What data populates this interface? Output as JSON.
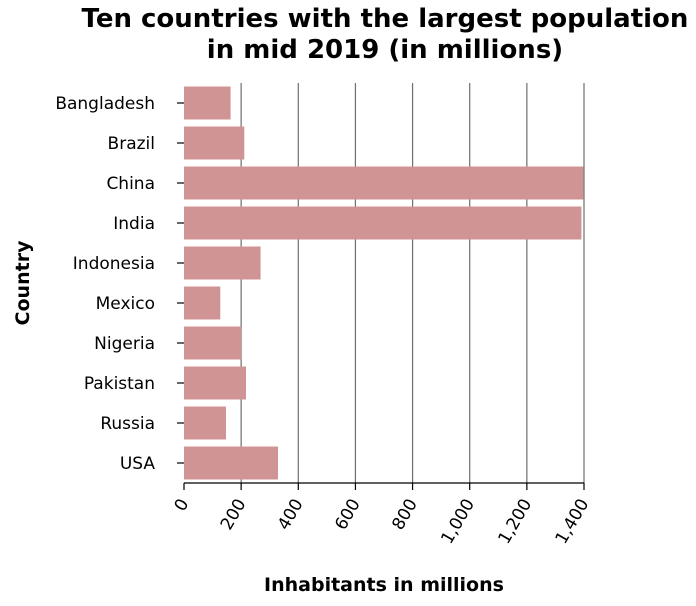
{
  "chart_data": {
    "type": "bar",
    "orientation": "horizontal",
    "title_lines": [
      "Ten countries with the largest population",
      "in mid 2019 (in millions)"
    ],
    "xlabel": "Inhabitants in millions",
    "ylabel": "Country",
    "categories": [
      "Bangladesh",
      "Brazil",
      "China",
      "India",
      "Indonesia",
      "Mexico",
      "Nigeria",
      "Pakistan",
      "Russia",
      "USA"
    ],
    "values": [
      163,
      211,
      1398,
      1391,
      268,
      127,
      201,
      217,
      147,
      329
    ],
    "xlim": [
      0,
      1400
    ],
    "xticks": [
      0,
      200,
      400,
      600,
      800,
      1000,
      1200,
      1400
    ],
    "xtick_labels": [
      "0",
      "200",
      "400",
      "600",
      "800",
      "1,000",
      "1,200",
      "1,400"
    ],
    "grid": "vertical",
    "bar_color": "#d09494"
  }
}
